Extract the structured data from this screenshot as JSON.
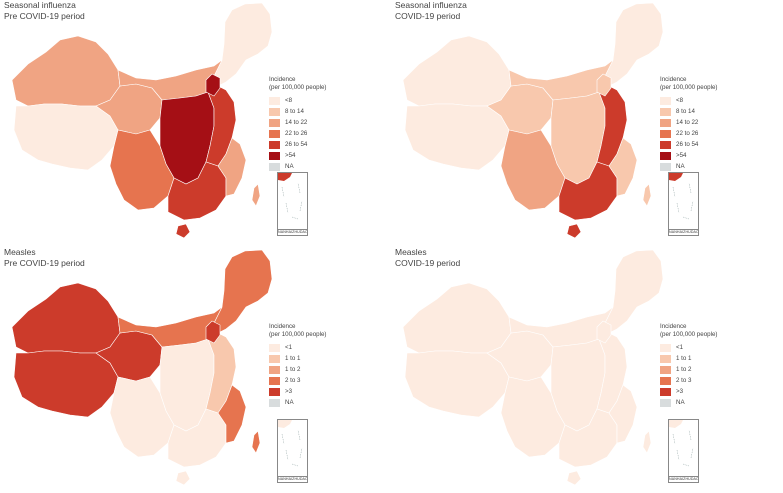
{
  "panels": [
    {
      "title_line1": "Seasonal influenza",
      "title_line2": "Pre COVID-19 period",
      "legend_title_line1": "Incidence",
      "legend_title_line2": "(per 100,000 people)",
      "legend": [
        {
          "label": "<8",
          "color": "#fdebe0"
        },
        {
          "label": "8 to 14",
          "color": "#f8c8ad"
        },
        {
          "label": "14 to 22",
          "color": "#f0a483"
        },
        {
          "label": "22 to 26",
          "color": "#e6744f"
        },
        {
          "label": "26 to 54",
          "color": "#cc3b2b"
        },
        {
          "label": ">54",
          "color": "#a50f15"
        },
        {
          "label": "NA",
          "color": "#d8dcdd"
        }
      ],
      "inset_label": "NANHAIZHUDAO",
      "fills": {
        "north": "#fdebe0",
        "west": "#f0a483",
        "tibet": "#fdebe0",
        "qinghai": "#f0a483",
        "inner": "#f0a483",
        "center": "#a50f15",
        "central_east": "#cc3b2b",
        "southwest": "#e6744f",
        "south": "#cc3b2b",
        "coast": "#f0a483",
        "beijing": "#a50f15"
      }
    },
    {
      "title_line1": "Seasonal influenza",
      "title_line2": "COVID-19 period",
      "legend_title_line1": "Incidence",
      "legend_title_line2": "(per 100,000 people)",
      "legend": [
        {
          "label": "<8",
          "color": "#fdebe0"
        },
        {
          "label": "8 to 14",
          "color": "#f8c8ad"
        },
        {
          "label": "14 to 22",
          "color": "#f0a483"
        },
        {
          "label": "22 to 26",
          "color": "#e6744f"
        },
        {
          "label": "26 to 54",
          "color": "#cc3b2b"
        },
        {
          "label": ">54",
          "color": "#a50f15"
        },
        {
          "label": "NA",
          "color": "#d8dcdd"
        }
      ],
      "inset_label": "NANHAIZHUDAO",
      "fills": {
        "north": "#fdebe0",
        "west": "#fdebe0",
        "tibet": "#fdebe0",
        "qinghai": "#f8c8ad",
        "inner": "#f8c8ad",
        "center": "#f8c8ad",
        "central_east": "#cc3b2b",
        "southwest": "#f0a483",
        "south": "#cc3b2b",
        "coast": "#f8c8ad",
        "beijing": "#f8c8ad"
      }
    },
    {
      "title_line1": "Measles",
      "title_line2": "Pre COVID-19 period",
      "legend_title_line1": "Incidence",
      "legend_title_line2": "(per 100,000 people)",
      "legend": [
        {
          "label": "<1",
          "color": "#fdebe0"
        },
        {
          "label": "1 to 1",
          "color": "#f8c8ad"
        },
        {
          "label": "1 to 2",
          "color": "#f0a483"
        },
        {
          "label": "2 to 3",
          "color": "#e6744f"
        },
        {
          "label": ">3",
          "color": "#cc3b2b"
        },
        {
          "label": "NA",
          "color": "#d8dcdd"
        }
      ],
      "inset_label": "NANHAIZHUDAO",
      "fills": {
        "north": "#e6744f",
        "west": "#cc3b2b",
        "tibet": "#cc3b2b",
        "qinghai": "#cc3b2b",
        "inner": "#e6744f",
        "center": "#fdebe0",
        "central_east": "#f8c8ad",
        "southwest": "#fdebe0",
        "south": "#fdebe0",
        "coast": "#e6744f",
        "beijing": "#cc3b2b"
      }
    },
    {
      "title_line1": "Measles",
      "title_line2": "COVID-19 period",
      "legend_title_line1": "Incidence",
      "legend_title_line2": "(per 100,000 people)",
      "legend": [
        {
          "label": "<1",
          "color": "#fdebe0"
        },
        {
          "label": "1 to 1",
          "color": "#f8c8ad"
        },
        {
          "label": "1 to 2",
          "color": "#f0a483"
        },
        {
          "label": "2 to 3",
          "color": "#e6744f"
        },
        {
          "label": ">3",
          "color": "#cc3b2b"
        },
        {
          "label": "NA",
          "color": "#d8dcdd"
        }
      ],
      "inset_label": "NANHAIZHUDAO",
      "fills": {
        "north": "#fdebe0",
        "west": "#fdebe0",
        "tibet": "#fdebe0",
        "qinghai": "#fdebe0",
        "inner": "#fdebe0",
        "center": "#fdebe0",
        "central_east": "#fdebe0",
        "southwest": "#fdebe0",
        "south": "#fdebe0",
        "coast": "#fdebe0",
        "beijing": "#fdebe0"
      }
    }
  ]
}
